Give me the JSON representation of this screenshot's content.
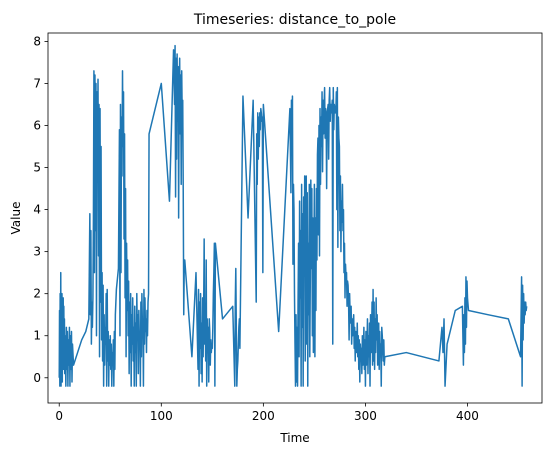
{
  "chart_data": {
    "type": "line",
    "title": "Timeseries: distance_to_pole",
    "xlabel": "Time",
    "ylabel": "Value",
    "xlim": [
      -11,
      473
    ],
    "ylim": [
      -0.6,
      8.2
    ],
    "xticks": [
      0,
      100,
      200,
      300,
      400
    ],
    "yticks": [
      0,
      1,
      2,
      3,
      4,
      5,
      6,
      7,
      8
    ],
    "legend": "none",
    "grid": false,
    "series": [
      {
        "color": "#1f77b4",
        "x": [
          0,
          0.3,
          0.6,
          0.9,
          1.2,
          1.5,
          1.8,
          2.1,
          2.4,
          2.7,
          3.0,
          3.3,
          3.6,
          3.9,
          4.2,
          4.5,
          4.8,
          5.1,
          5.4,
          5.7,
          6.0,
          6.5,
          7.0,
          7.5,
          8.0,
          8.5,
          9.0,
          9.5,
          10.0,
          10.5,
          11.0,
          11.5,
          12.0,
          12.5,
          13.0,
          14,
          18,
          22,
          26,
          29,
          30.0,
          30.5,
          31.0,
          31.5,
          32.0,
          32.5,
          33.0,
          33.5,
          34.0,
          34.5,
          35.0,
          35.5,
          36.0,
          36.5,
          37.0,
          37.5,
          38.0,
          38.5,
          39.0,
          39.5,
          40.0,
          40.5,
          41.0,
          41.5,
          42.0,
          42.5,
          43.0,
          43.5,
          44.0,
          44.5,
          45.0,
          45.5,
          46.0,
          46.5,
          47.0,
          47.5,
          48.0,
          48.5,
          49.0,
          49.5,
          50.0,
          50.5,
          51.0,
          51.5,
          52.0,
          52.5,
          53.0,
          53.5,
          54.0,
          54.5,
          55.0,
          56,
          58,
          59.0,
          59.5,
          60.0,
          60.5,
          61.0,
          61.5,
          62.0,
          62.5,
          63.0,
          63.5,
          64.0,
          64.5,
          65.0,
          65.5,
          66.0,
          66.5,
          67.0,
          67.5,
          68.0,
          68.5,
          69.0,
          69.5,
          70.0,
          70.5,
          71.0,
          71.5,
          72.0,
          72.5,
          73.0,
          73.5,
          74.0,
          74.5,
          75.0,
          75.5,
          76.0,
          76.5,
          77.0,
          77.5,
          78.0,
          78.5,
          79.0,
          79.5,
          80.0,
          80.5,
          81.0,
          81.5,
          82.0,
          82.5,
          83.0,
          83.5,
          84.0,
          84.5,
          85.0,
          85.5,
          86.0,
          86.5,
          87.0,
          87.5,
          88.0,
          100,
          108,
          112,
          113.0,
          113.5,
          114.0,
          114.5,
          115.0,
          115.5,
          116.0,
          116.5,
          117.0,
          117.5,
          118.0,
          118.5,
          119.0,
          119.5,
          120.0,
          120.5,
          121.0,
          121.5,
          122.0,
          122.5,
          123.0,
          130,
          134,
          136,
          136.5,
          137.0,
          137.5,
          138.0,
          138.5,
          139.0,
          139.5,
          140.0,
          140.5,
          141.0,
          141.5,
          142.0,
          142.5,
          143.0,
          143.5,
          144.0,
          144.5,
          145.0,
          145.5,
          146.0,
          146.5,
          147.0,
          147.5,
          148.0,
          148.5,
          149.0,
          149.5,
          150.0,
          150.5,
          151.0,
          151.5,
          152.0,
          152.5,
          153.0,
          160,
          170,
          172,
          172.5,
          173.0,
          173.5,
          174.0,
          174.5,
          175.0,
          175.5,
          176.0,
          176.5,
          177,
          180,
          185,
          190,
          193,
          193.5,
          194.0,
          194.5,
          195.0,
          195.5,
          196.0,
          196.5,
          197.0,
          197.5,
          198.0,
          198.5,
          199.0,
          199.5,
          200,
          215,
          226,
          227.0,
          227.5,
          228.0,
          228.5,
          229.0,
          229.5,
          230.0,
          230.5,
          231.0,
          231.5,
          232.0,
          232.5,
          233.0,
          233.5,
          234.0,
          234.5,
          235.0,
          235.5,
          236.0,
          236.5,
          237.0,
          237.5,
          238.0,
          238.5,
          239.0,
          239.5,
          240.0,
          240.5,
          241.0,
          241.5,
          242.0,
          242.5,
          243.0,
          243.5,
          244.0,
          244.5,
          245.0,
          245.5,
          246.0,
          246.5,
          247.0,
          247.5,
          248.0,
          248.5,
          249.0,
          249.5,
          250.0,
          250.5,
          251.0,
          251.5,
          252.0,
          252.5,
          253.0,
          253.5,
          254.0,
          254.5,
          255.0,
          255.5,
          256.0,
          256.5,
          257.0,
          257.5,
          258.0,
          258.5,
          259.0,
          259.5,
          260.0,
          260.5,
          261.0,
          261.5,
          262.0,
          262.5,
          263.0,
          263.5,
          264.0,
          264.5,
          265.0,
          265.5,
          266.0,
          266.5,
          267.0,
          267.5,
          268.0,
          268.5,
          269.0,
          269.5,
          270.0,
          270.5,
          271.0,
          271.5,
          272.0,
          272.5,
          273.0,
          273.5,
          274.0,
          274.5,
          275.0,
          275.5,
          276.0,
          276.5,
          277.0,
          277.5,
          278.0,
          278.5,
          279.0,
          279.5,
          280.0,
          280.5,
          281.0,
          281.5,
          282.0,
          282.5,
          283.0,
          283.5,
          284.0,
          284.5,
          285.0,
          285.5,
          286.0,
          286.5,
          287.0,
          287.5,
          288.0,
          288.5,
          289.0,
          289.5,
          290.0,
          290.5,
          291.0,
          291.5,
          292.0,
          292.5,
          293.0,
          293.5,
          294.0,
          294.5,
          295.0,
          295.5,
          296.0,
          296.5,
          297.0,
          297.5,
          298.0,
          298.5,
          299.0,
          299.5,
          300.0,
          300.5,
          301.0,
          301.5,
          302.0,
          302.5,
          303.0,
          303.5,
          304.0,
          304.5,
          305.0,
          305.5,
          306.0,
          306.5,
          307.0,
          307.5,
          308.0,
          308.5,
          309.0,
          309.5,
          310.0,
          310.5,
          311.0,
          311.5,
          312.0,
          312.5,
          313.0,
          313.5,
          314.0,
          314.5,
          315.0,
          315.5,
          316.0,
          316.5,
          317.0,
          317.5,
          318.0,
          318.5,
          319,
          340,
          372,
          375,
          376,
          377,
          378,
          380,
          388,
          395,
          396.0,
          396.5,
          397.0,
          397.5,
          398.0,
          398.5,
          399.0,
          399.5,
          400.0,
          401,
          420,
          440,
          452,
          453.0,
          453.5,
          454.0,
          454.5,
          455.0,
          455.5,
          456.0,
          456.5,
          457.0,
          457.5,
          458.0
        ],
        "y": [
          0,
          1.6,
          -0.2,
          2.0,
          0.1,
          2.5,
          -0.2,
          1.8,
          0.3,
          2.0,
          -0.1,
          1.5,
          0.5,
          1.9,
          0.2,
          1.7,
          0.4,
          1.4,
          0.1,
          1.0,
          0.6,
          -0.2,
          1.2,
          0.2,
          1.1,
          -0.2,
          0.9,
          0.3,
          1.2,
          -0.2,
          1.0,
          0.2,
          1.1,
          -0.1,
          0.8,
          0.3,
          0.6,
          0.9,
          1.1,
          1.4,
          3.9,
          1.5,
          3.5,
          0.8,
          1.8,
          1.2,
          1.9,
          3.8,
          7.3,
          2.5,
          7.2,
          3.5,
          7.0,
          1.0,
          6.8,
          4.8,
          7.1,
          2.9,
          6.5,
          0.5,
          6.4,
          1.8,
          5.5,
          0.9,
          2.5,
          0.4,
          2.2,
          -0.2,
          1.5,
          0.3,
          1.2,
          0.8,
          2.0,
          -0.2,
          2.1,
          0.4,
          1.1,
          -0.2,
          0.9,
          0.3,
          1.0,
          0.2,
          0.8,
          -0.2,
          0.6,
          0.4,
          0.9,
          -0.2,
          1.1,
          0.2,
          1.5,
          2.1,
          2.6,
          5.9,
          1.0,
          6.5,
          2.5,
          6.2,
          4.8,
          7.3,
          5.5,
          6.8,
          3.3,
          5.8,
          1.9,
          4.5,
          0.5,
          3.2,
          1.6,
          2.8,
          1.0,
          2.3,
          0.1,
          1.8,
          0.6,
          2.0,
          -0.2,
          1.5,
          0.8,
          1.9,
          0.4,
          1.2,
          -0.2,
          1.7,
          0.6,
          1.3,
          -0.2,
          2.0,
          1.1,
          1.5,
          0.1,
          1.6,
          0.9,
          1.1,
          -0.2,
          1.8,
          0.5,
          2.0,
          1.2,
          1.3,
          -0.2,
          2.1,
          0.8,
          1.9,
          1.1,
          1.4,
          0.6,
          1.6,
          1.0,
          1.8,
          2.0,
          5.8,
          7.0,
          4.2,
          7.8,
          6.5,
          7.9,
          4.3,
          7.6,
          5.2,
          7.7,
          6.1,
          7.4,
          3.8,
          6.8,
          7.6,
          5.8,
          7.2,
          4.6,
          7.3,
          6.2,
          6.6,
          4.4,
          1.5,
          2.7,
          2.8,
          0.5,
          2.5,
          0.2,
          2.1,
          -0.2,
          1.8,
          0.7,
          2.0,
          0.1,
          1.3,
          -0.1,
          1.9,
          0.5,
          1.6,
          3.3,
          0.8,
          1.5,
          0.4,
          2.8,
          -0.2,
          1.4,
          0.6,
          1.2,
          -0.1,
          1.4,
          1.1,
          0.3,
          0.9,
          0.6,
          0.8,
          0.7,
          1.2,
          2.0,
          2.5,
          3.2,
          -0.2,
          3.2,
          1.4,
          1.7,
          -0.2,
          1.8,
          2.6,
          1.2,
          -0.2,
          0.2,
          0.4,
          0.8,
          1.2,
          1.4,
          0.7,
          6.7,
          3.8,
          6.6,
          1.8,
          5.8,
          4.6,
          6.3,
          5.2,
          6.2,
          5.5,
          6.3,
          5.9,
          6.4,
          6.3,
          6.1,
          6.2,
          2.5,
          6.5,
          1.1,
          6.4,
          4.4,
          6.6,
          5.9,
          6.7,
          2.7,
          4.6,
          4.0,
          2.0,
          0.8,
          -0.2,
          1.5,
          -0.1,
          1.2,
          -0.2,
          1.8,
          3.2,
          0.5,
          4.2,
          1.9,
          3.5,
          -0.2,
          4.6,
          1.2,
          3.9,
          -0.2,
          4.3,
          2.5,
          4.8,
          0.4,
          3.1,
          4.8,
          0.8,
          4.4,
          -0.2,
          3.2,
          1.5,
          4.6,
          0.5,
          2.4,
          4.7,
          2.6,
          4.5,
          1.0,
          3.8,
          0.6,
          2.8,
          4.6,
          0.5,
          3.8,
          1.6,
          4.5,
          2.8,
          5.3,
          5.7,
          3.4,
          6.0,
          2.9,
          6.4,
          4.6,
          6.2,
          5.5,
          6.8,
          4.9,
          6.6,
          5.8,
          6.5,
          6.9,
          5.7,
          6.4,
          6.2,
          4.5,
          6.3,
          6.4,
          6.5,
          5.2,
          6.6,
          6.9,
          6.1,
          6.5,
          6.3,
          6.4,
          6.6,
          0.8,
          6.9,
          5.9,
          6.5,
          6.4,
          6.3,
          6.3,
          6.8,
          4.0,
          6.9,
          3.1,
          6.2,
          5.7,
          5.5,
          3.5,
          4.8,
          3.0,
          4.2,
          3.7,
          4.6,
          3.5,
          4.0,
          2.5,
          3.2,
          1.9,
          2.7,
          2.4,
          2.5,
          1.7,
          2.3,
          2.2,
          1.8,
          0.9,
          2.0,
          1.5,
          1.3,
          1.7,
          0.8,
          1.4,
          1.0,
          1.3,
          1.5,
          0.7,
          1.2,
          0.4,
          1.1,
          0.9,
          0.6,
          1.3,
          0.5,
          1.0,
          0.2,
          0.9,
          -0.1,
          0.8,
          0.4,
          0.7,
          0.1,
          1.0,
          0.3,
          0.6,
          1.2,
          0.2,
          0.9,
          -0.2,
          1.1,
          0.3,
          0.7,
          1.4,
          0.1,
          1.0,
          0.5,
          1.3,
          -0.2,
          1.5,
          0.6,
          0.9,
          1.8,
          0.3,
          2.1,
          0.4,
          1.8,
          0.2,
          1.4,
          0.6,
          1.9,
          0.9,
          1.5,
          0.3,
          0.9,
          1.3,
          0.2,
          1.1,
          0.5,
          0.8,
          -0.2,
          1.2,
          1.0,
          0.7,
          0.4,
          0.9,
          0.3,
          0.5,
          0.6,
          0.4,
          1.2,
          0.6,
          1.4,
          -0.2,
          0.8,
          1.6,
          1.7,
          0.3,
          1.5,
          0.6,
          1.9,
          0.8,
          2.4,
          1.2,
          2.3,
          1.9,
          1.6,
          1.5,
          1.4,
          0.5,
          2.4,
          -0.2,
          2.2,
          0.9,
          2.0,
          1.3,
          1.8,
          1.5,
          1.8,
          1.6,
          1.7
        ]
      }
    ]
  }
}
